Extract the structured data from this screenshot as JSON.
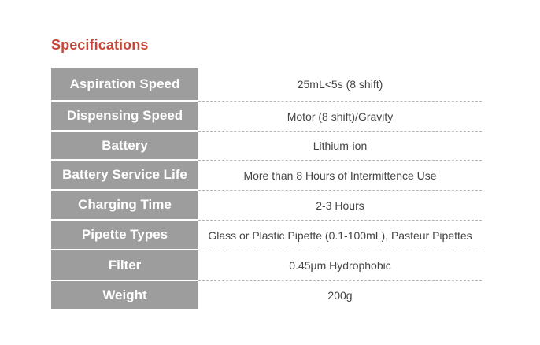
{
  "section": {
    "title": "Specifications"
  },
  "specs": [
    {
      "label": "Aspiration Speed",
      "value": "25mL<5s (8 shift)"
    },
    {
      "label": "Dispensing Speed",
      "value": "Motor (8 shift)/Gravity"
    },
    {
      "label": "Battery",
      "value": "Lithium-ion"
    },
    {
      "label": "Battery Service Life",
      "value": "More than 8 Hours of Intermittence Use"
    },
    {
      "label": "Charging Time",
      "value": "2-3 Hours"
    },
    {
      "label": "Pipette Types",
      "value": "Glass or Plastic Pipette (0.1-100mL), Pasteur Pipettes"
    },
    {
      "label": "Filter",
      "value": "0.45μm Hydrophobic"
    },
    {
      "label": "Weight",
      "value": "200g"
    }
  ],
  "colors": {
    "title": "#c8473a",
    "label_bg": "#9d9d9d",
    "label_text": "#ffffff",
    "value_text": "#444444",
    "divider": "#b5b5b5"
  }
}
